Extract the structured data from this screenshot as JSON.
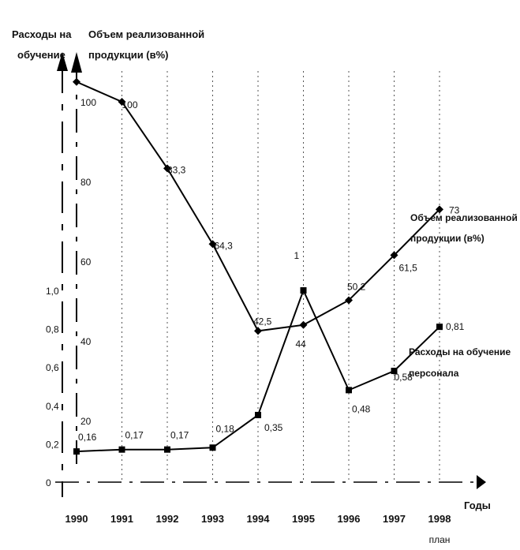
{
  "chart_data": {
    "type": "line",
    "title": "",
    "categories": [
      "1990",
      "1991",
      "1992",
      "1993",
      "1994",
      "1995",
      "1996",
      "1997",
      "1998"
    ],
    "x_sublabels": [
      "",
      "",
      "",
      "",
      "",
      "",
      "",
      "",
      "план"
    ],
    "xlabel": "Годы",
    "y_left": {
      "label_line1": "Расходы на",
      "label_line2": "обучение",
      "ylim": [
        0,
        1.0
      ],
      "ticks": [
        "0",
        "0,2",
        "0,4",
        "0,6",
        "0,8",
        "1,0"
      ]
    },
    "y_right": {
      "label_line1": "Объем реализованной",
      "label_line2": "продукции (в%)",
      "ylim": [
        0,
        100
      ],
      "ticks": [
        "20",
        "40",
        "60",
        "80",
        "100"
      ]
    },
    "series": [
      {
        "name_line1": "Объем реализованной",
        "name_line2": "продукции (в%)",
        "axis": "right",
        "values": [
          105,
          100,
          83.3,
          64.3,
          42.5,
          44,
          50.2,
          61.5,
          73
        ],
        "labels": [
          "",
          "100",
          "83,3",
          "64,3",
          "42,5",
          "44",
          "50,2",
          "61,5",
          "73"
        ]
      },
      {
        "name_line1": "Расходы на обучение",
        "name_line2": "персонала",
        "axis": "left",
        "values": [
          0.16,
          0.17,
          0.17,
          0.18,
          0.35,
          1.0,
          0.48,
          0.58,
          0.81
        ],
        "labels": [
          "0,16",
          "0,17",
          "0,17",
          "0,18",
          "0,35",
          "1",
          "0,48",
          "0,58",
          "0,81"
        ]
      }
    ],
    "grid": true,
    "legend": "inline"
  }
}
